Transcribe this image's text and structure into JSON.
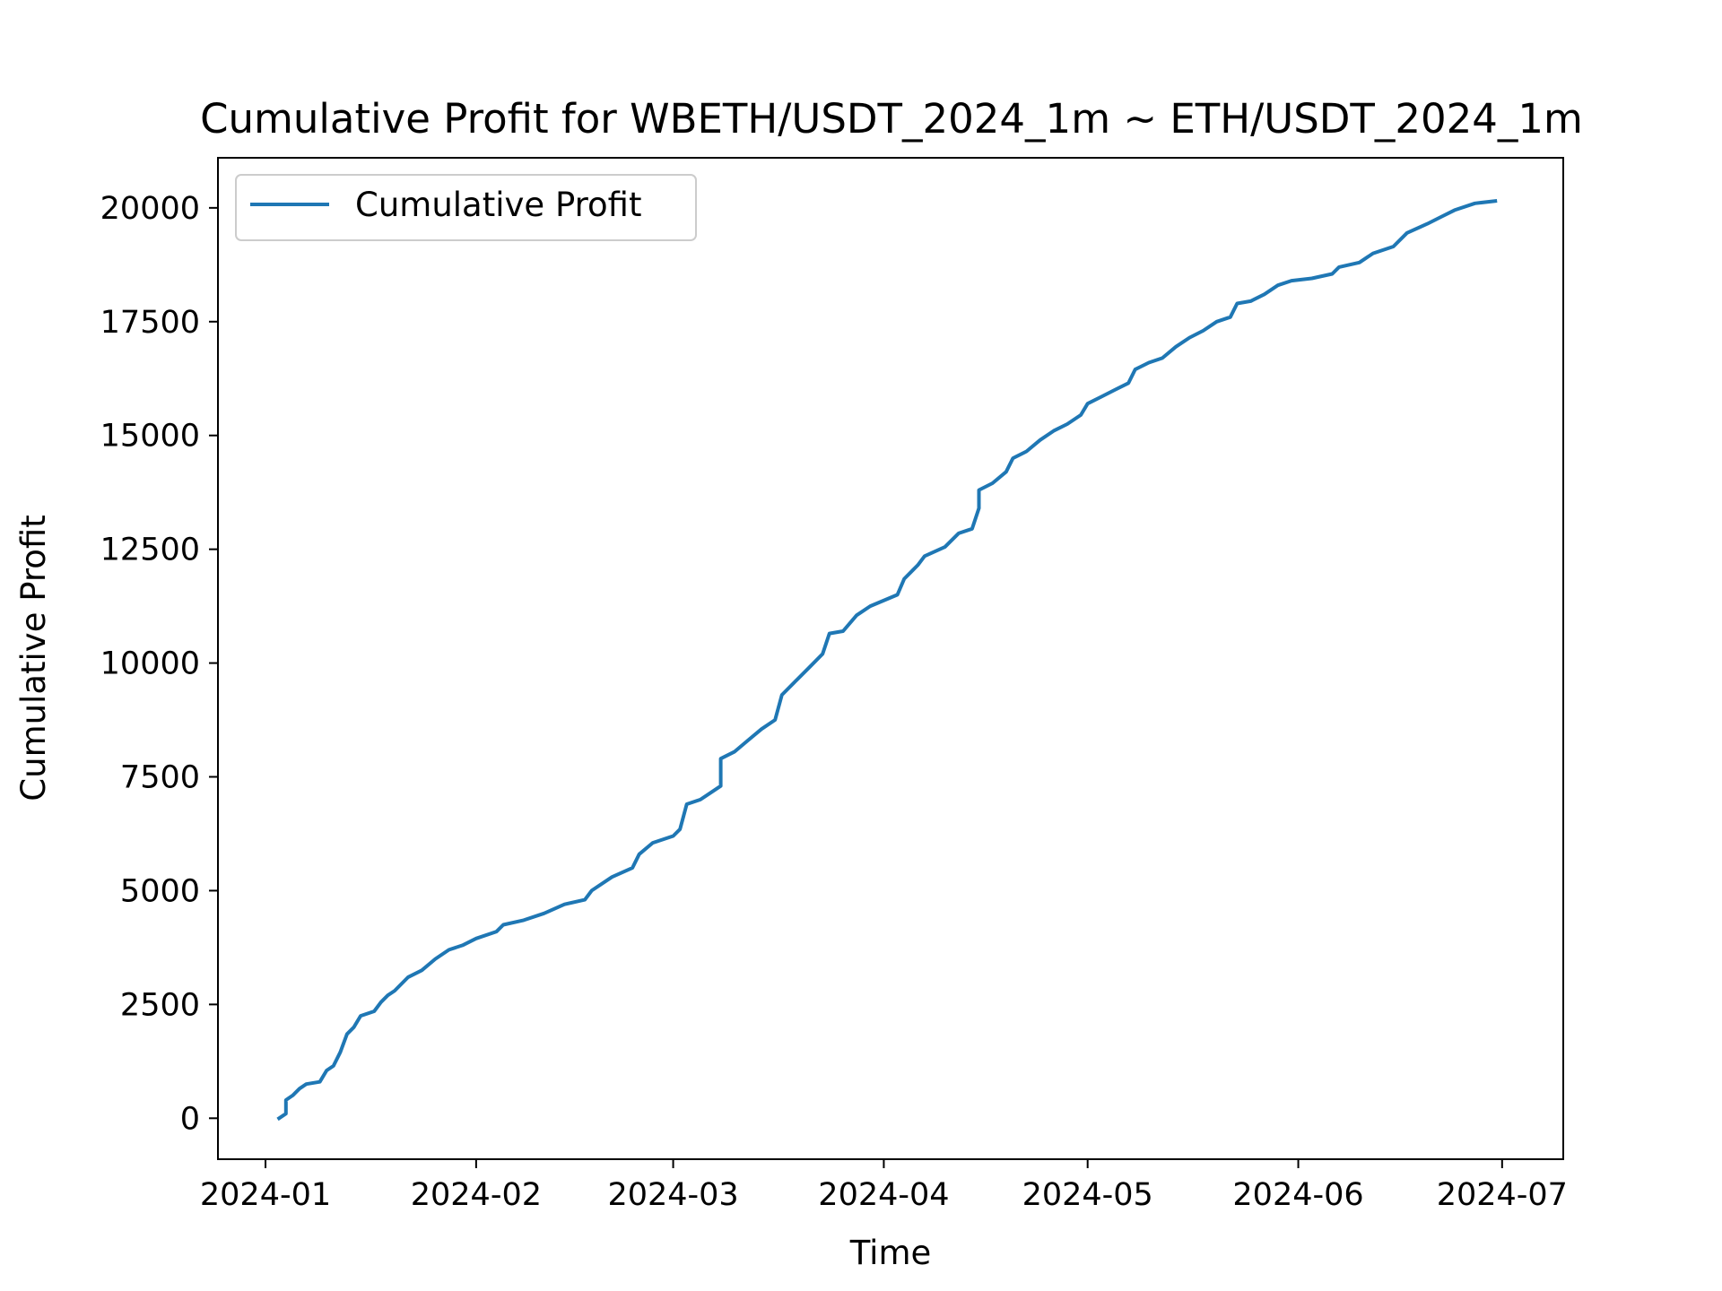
{
  "chart_data": {
    "type": "line",
    "title": "Cumulative Profit for WBETH/USDT_2024_1m ~ ETH/USDT_2024_1m",
    "xlabel": "Time",
    "ylabel": "Cumulative Profit",
    "xlim": [
      "2023-12-25",
      "2024-07-10"
    ],
    "ylim": [
      -900,
      21100
    ],
    "xticks": [
      "2024-01",
      "2024-02",
      "2024-03",
      "2024-04",
      "2024-05",
      "2024-06",
      "2024-07"
    ],
    "yticks": [
      0,
      2500,
      5000,
      7500,
      10000,
      12500,
      15000,
      17500,
      20000
    ],
    "grid": false,
    "legend": {
      "position": "top-left",
      "entries": [
        "Cumulative Profit"
      ]
    },
    "series": [
      {
        "name": "Cumulative Profit",
        "color": "#1f77b4",
        "points": [
          [
            "2024-01-03",
            0
          ],
          [
            "2024-01-04",
            100
          ],
          [
            "2024-01-04",
            400
          ],
          [
            "2024-01-05",
            500
          ],
          [
            "2024-01-06",
            650
          ],
          [
            "2024-01-07",
            750
          ],
          [
            "2024-01-09",
            800
          ],
          [
            "2024-01-10",
            1050
          ],
          [
            "2024-01-11",
            1150
          ],
          [
            "2024-01-12",
            1450
          ],
          [
            "2024-01-13",
            1850
          ],
          [
            "2024-01-14",
            2000
          ],
          [
            "2024-01-15",
            2250
          ],
          [
            "2024-01-17",
            2350
          ],
          [
            "2024-01-18",
            2550
          ],
          [
            "2024-01-19",
            2700
          ],
          [
            "2024-01-20",
            2800
          ],
          [
            "2024-01-22",
            3100
          ],
          [
            "2024-01-24",
            3250
          ],
          [
            "2024-01-26",
            3500
          ],
          [
            "2024-01-28",
            3700
          ],
          [
            "2024-01-30",
            3800
          ],
          [
            "2024-02-01",
            3950
          ],
          [
            "2024-02-04",
            4100
          ],
          [
            "2024-02-05",
            4250
          ],
          [
            "2024-02-08",
            4350
          ],
          [
            "2024-02-11",
            4500
          ],
          [
            "2024-02-14",
            4700
          ],
          [
            "2024-02-17",
            4800
          ],
          [
            "2024-02-18",
            5000
          ],
          [
            "2024-02-21",
            5300
          ],
          [
            "2024-02-24",
            5500
          ],
          [
            "2024-02-25",
            5800
          ],
          [
            "2024-02-27",
            6050
          ],
          [
            "2024-03-01",
            6200
          ],
          [
            "2024-03-02",
            6350
          ],
          [
            "2024-03-03",
            6900
          ],
          [
            "2024-03-05",
            7000
          ],
          [
            "2024-03-08",
            7300
          ],
          [
            "2024-03-08",
            7900
          ],
          [
            "2024-03-10",
            8050
          ],
          [
            "2024-03-12",
            8300
          ],
          [
            "2024-03-14",
            8550
          ],
          [
            "2024-03-16",
            8750
          ],
          [
            "2024-03-17",
            9300
          ],
          [
            "2024-03-19",
            9600
          ],
          [
            "2024-03-21",
            9900
          ],
          [
            "2024-03-23",
            10200
          ],
          [
            "2024-03-24",
            10650
          ],
          [
            "2024-03-26",
            10700
          ],
          [
            "2024-03-28",
            11050
          ],
          [
            "2024-03-30",
            11250
          ],
          [
            "2024-04-03",
            11500
          ],
          [
            "2024-04-04",
            11850
          ],
          [
            "2024-04-06",
            12150
          ],
          [
            "2024-04-07",
            12350
          ],
          [
            "2024-04-10",
            12550
          ],
          [
            "2024-04-12",
            12850
          ],
          [
            "2024-04-14",
            12950
          ],
          [
            "2024-04-15",
            13400
          ],
          [
            "2024-04-15",
            13800
          ],
          [
            "2024-04-17",
            13950
          ],
          [
            "2024-04-19",
            14200
          ],
          [
            "2024-04-20",
            14500
          ],
          [
            "2024-04-22",
            14650
          ],
          [
            "2024-04-24",
            14900
          ],
          [
            "2024-04-26",
            15100
          ],
          [
            "2024-04-28",
            15250
          ],
          [
            "2024-04-30",
            15450
          ],
          [
            "2024-05-01",
            15700
          ],
          [
            "2024-05-03",
            15850
          ],
          [
            "2024-05-05",
            16000
          ],
          [
            "2024-05-07",
            16150
          ],
          [
            "2024-05-08",
            16450
          ],
          [
            "2024-05-10",
            16600
          ],
          [
            "2024-05-12",
            16700
          ],
          [
            "2024-05-14",
            16950
          ],
          [
            "2024-05-16",
            17150
          ],
          [
            "2024-05-18",
            17300
          ],
          [
            "2024-05-20",
            17500
          ],
          [
            "2024-05-22",
            17600
          ],
          [
            "2024-05-23",
            17900
          ],
          [
            "2024-05-25",
            17950
          ],
          [
            "2024-05-27",
            18100
          ],
          [
            "2024-05-29",
            18300
          ],
          [
            "2024-05-31",
            18400
          ],
          [
            "2024-06-03",
            18450
          ],
          [
            "2024-06-06",
            18550
          ],
          [
            "2024-06-07",
            18700
          ],
          [
            "2024-06-10",
            18800
          ],
          [
            "2024-06-12",
            19000
          ],
          [
            "2024-06-15",
            19150
          ],
          [
            "2024-06-17",
            19450
          ],
          [
            "2024-06-20",
            19650
          ],
          [
            "2024-06-22",
            19800
          ],
          [
            "2024-06-24",
            19950
          ],
          [
            "2024-06-27",
            20100
          ],
          [
            "2024-06-30",
            20150
          ]
        ]
      }
    ]
  }
}
